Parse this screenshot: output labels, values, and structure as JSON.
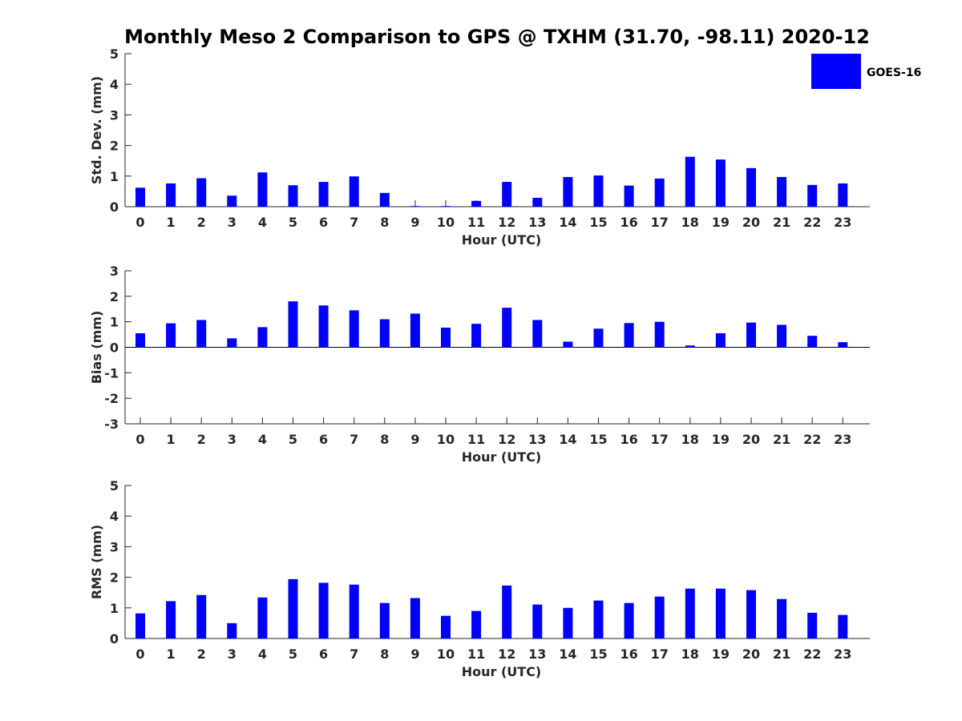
{
  "chart_data": {
    "type": "bar",
    "title": "Monthly Meso 2 Comparison to GPS @ TXHM (31.70, -98.11) 2020-12",
    "colors": {
      "bar": "#0000ff",
      "axis": "#262626"
    },
    "legend": {
      "label": "GOES-16",
      "location": "top-right"
    },
    "panels": [
      {
        "id": "std",
        "ylabel": "Std. Dev. (mm)",
        "xlabel": "Hour (UTC)",
        "ylim": [
          0,
          5
        ],
        "yticks": [
          0,
          1,
          2,
          3,
          4,
          5
        ],
        "zero_line": false,
        "categories": [
          "0",
          "1",
          "2",
          "3",
          "4",
          "5",
          "6",
          "7",
          "8",
          "9",
          "10",
          "11",
          "12",
          "13",
          "14",
          "15",
          "16",
          "17",
          "18",
          "19",
          "20",
          "21",
          "22",
          "23"
        ],
        "series": [
          {
            "name": "GOES-16",
            "values": [
              0.62,
              0.76,
              0.93,
              0.36,
              1.12,
              0.7,
              0.81,
              0.99,
              0.45,
              0.02,
              0.02,
              0.19,
              0.81,
              0.29,
              0.97,
              1.02,
              0.69,
              0.92,
              1.63,
              1.54,
              1.26,
              0.97,
              0.71,
              0.76
            ]
          }
        ]
      },
      {
        "id": "bias",
        "ylabel": "Bias (mm)",
        "xlabel": "Hour (UTC)",
        "ylim": [
          -3,
          3
        ],
        "yticks": [
          -3,
          -2,
          -1,
          0,
          1,
          2,
          3
        ],
        "zero_line": true,
        "categories": [
          "0",
          "1",
          "2",
          "3",
          "4",
          "5",
          "6",
          "7",
          "8",
          "9",
          "10",
          "11",
          "12",
          "13",
          "14",
          "15",
          "16",
          "17",
          "18",
          "19",
          "20",
          "21",
          "22",
          "23"
        ],
        "series": [
          {
            "name": "GOES-16",
            "values": [
              0.55,
              0.94,
              1.07,
              0.35,
              0.79,
              1.8,
              1.64,
              1.45,
              1.1,
              1.32,
              0.77,
              0.92,
              1.55,
              1.07,
              0.22,
              0.73,
              0.95,
              1.0,
              0.07,
              0.55,
              0.97,
              0.88,
              0.45,
              0.2
            ]
          }
        ]
      },
      {
        "id": "rms",
        "ylabel": "RMS (mm)",
        "xlabel": "Hour (UTC)",
        "ylim": [
          0,
          5
        ],
        "yticks": [
          0,
          1,
          2,
          3,
          4,
          5
        ],
        "zero_line": false,
        "categories": [
          "0",
          "1",
          "2",
          "3",
          "4",
          "5",
          "6",
          "7",
          "8",
          "9",
          "10",
          "11",
          "12",
          "13",
          "14",
          "15",
          "16",
          "17",
          "18",
          "19",
          "20",
          "21",
          "22",
          "23"
        ],
        "series": [
          {
            "name": "GOES-16",
            "values": [
              0.82,
              1.22,
              1.42,
              0.5,
              1.34,
              1.94,
              1.82,
              1.76,
              1.16,
              1.32,
              0.74,
              0.9,
              1.73,
              1.11,
              1.0,
              1.24,
              1.16,
              1.37,
              1.63,
              1.63,
              1.58,
              1.29,
              0.84,
              0.77
            ]
          }
        ]
      }
    ]
  }
}
